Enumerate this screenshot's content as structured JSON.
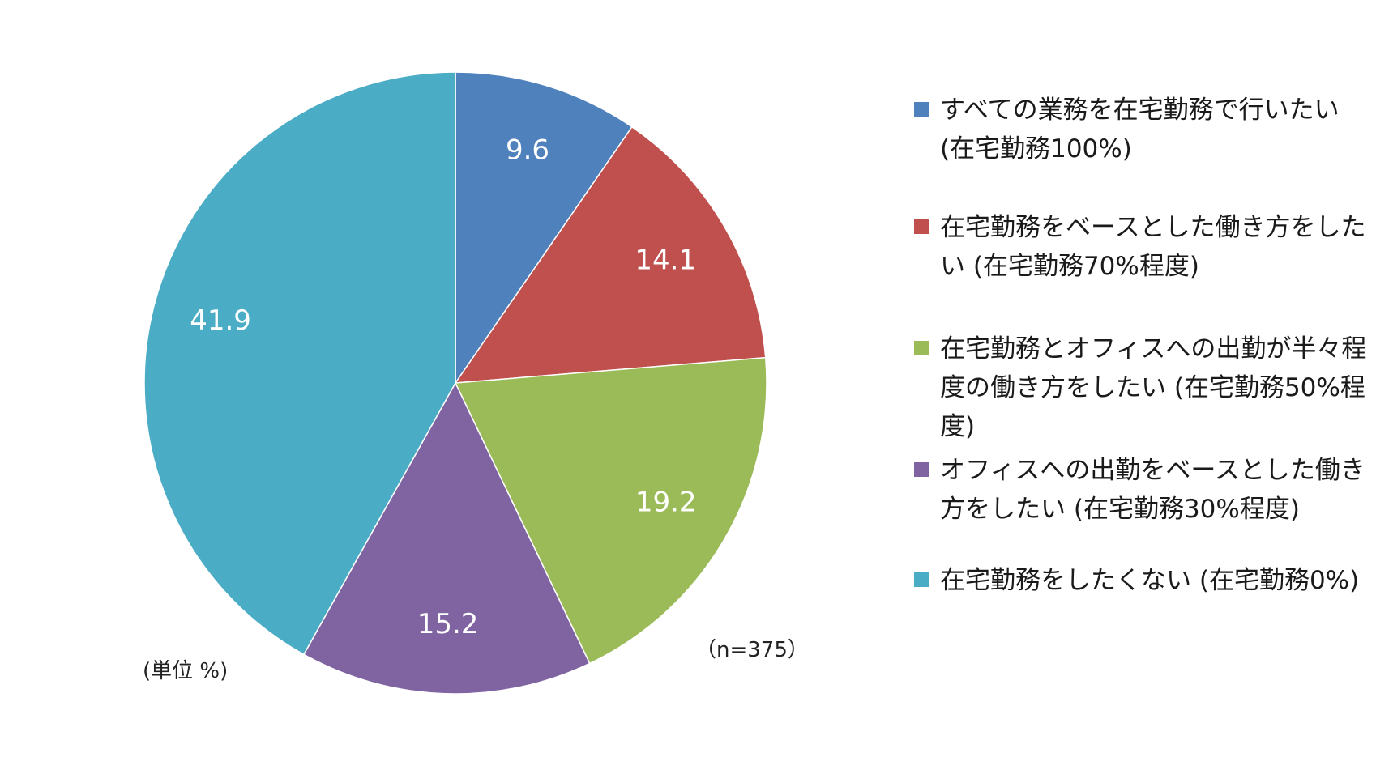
{
  "chart_data": {
    "type": "pie",
    "start": "top",
    "direction": "clockwise",
    "slices": [
      {
        "label": "すべての業務を在宅勤務で行いたい (在宅勤務100%)",
        "value": 9.6,
        "color": "#4f81bd"
      },
      {
        "label": "在宅勤務をベースとした働き方をしたい (在宅勤務70%程度)",
        "value": 14.1,
        "color": "#c0504d"
      },
      {
        "label": "在宅勤務とオフィスへの出勤が半々程度の働き方をしたい (在宅勤務50%程度)",
        "value": 19.2,
        "color": "#9bbb59"
      },
      {
        "label": "オフィスへの出勤をベースとした働き方をしたい (在宅勤務30%程度)",
        "value": 15.2,
        "color": "#8064a2"
      },
      {
        "label": "在宅勤務をしたくない (在宅勤務0%)",
        "value": 41.9,
        "color": "#4bacc6"
      }
    ],
    "unit_note": "(単位 %)",
    "sample_note": "（n=375）",
    "legend_position": "right"
  }
}
